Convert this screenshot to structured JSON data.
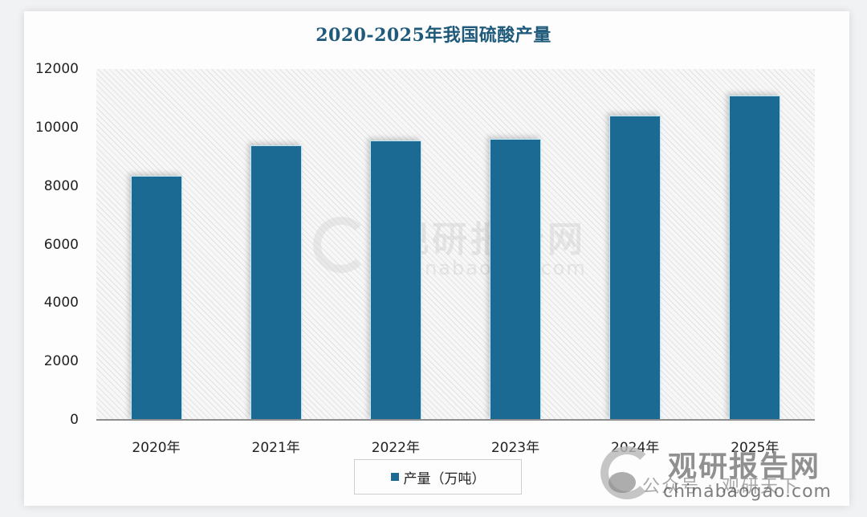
{
  "chart_data": {
    "type": "bar",
    "title": "2020-2025年我国硫酸产量",
    "categories": [
      "2020年",
      "2021年",
      "2022年",
      "2023年",
      "2024年",
      "2025年"
    ],
    "series": [
      {
        "name": "产量（万吨）",
        "values": [
          8350,
          9400,
          9550,
          9600,
          10400,
          11100
        ],
        "color": "#1b6a94"
      }
    ],
    "xlabel": "",
    "ylabel": "",
    "ylim": [
      0,
      12000
    ],
    "yticks": [
      "0",
      "2000",
      "4000",
      "6000",
      "8000",
      "10000",
      "12000"
    ],
    "grid": false,
    "legend_position": "bottom"
  },
  "watermark": {
    "center_text": "观研报告网",
    "center_url": "chinabaogao.com",
    "corner_text": "观研报告网",
    "corner_url": "chinabaogao.com",
    "wechat_text": "公众号 · 观研天下"
  }
}
